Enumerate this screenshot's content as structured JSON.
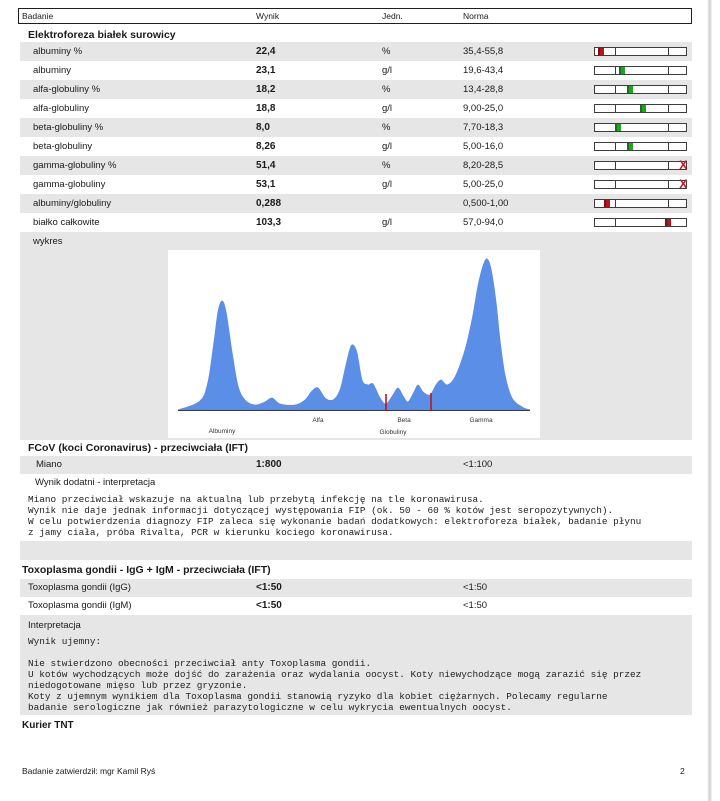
{
  "header": {
    "test": "Badanie",
    "result": "Wynik",
    "unit": "Jedn.",
    "norm": "Norma"
  },
  "electrophoresis": {
    "title": "Elektroforeza białek surowicy",
    "rows": [
      {
        "name": "albuminy %",
        "value": "22,4",
        "unit": "%",
        "norm": "35,4-55,8",
        "level": 0.07,
        "marker_color": "#b3161b"
      },
      {
        "name": "albuminy",
        "value": "23,1",
        "unit": "g/l",
        "norm": "19,6-43,4",
        "level": 0.3,
        "marker_color": "#1fa51f"
      },
      {
        "name": "alfa-globuliny %",
        "value": "18,2",
        "unit": "%",
        "norm": "13,4-28,8",
        "level": 0.39,
        "marker_color": "#1fa51f"
      },
      {
        "name": "alfa-globuliny",
        "value": "18,8",
        "unit": "g/l",
        "norm": "9,00-25,0",
        "level": 0.53,
        "marker_color": "#1fa51f"
      },
      {
        "name": "beta-globuliny %",
        "value": "8,0",
        "unit": "%",
        "norm": "7,70-18,3",
        "level": 0.25,
        "marker_color": "#1fa51f"
      },
      {
        "name": "beta-globuliny",
        "value": "8,26",
        "unit": "g/l",
        "norm": "5,00-16,0",
        "level": 0.38,
        "marker_color": "#1fa51f"
      },
      {
        "name": "gamma-globuliny %",
        "value": "51,4",
        "unit": "%",
        "norm": "8,20-28,5",
        "level": 0.97,
        "marker_color": "#c8141b",
        "marker_symbol": "X"
      },
      {
        "name": "gamma-globuliny",
        "value": "53,1",
        "unit": "g/l",
        "norm": "5,00-25,0",
        "level": 0.97,
        "marker_color": "#c8141b",
        "marker_symbol": "X"
      },
      {
        "name": "albuminy/globuliny",
        "value": "0,288",
        "norm": "0,500-1,00",
        "level": 0.13,
        "marker_color": "#b3161b"
      },
      {
        "name": "białko całkowite",
        "value": "103,3",
        "unit": "g/l",
        "norm": "57,0-94,0",
        "level": 0.8,
        "marker_color": "#b3161b"
      }
    ],
    "chart_caption": "wykres",
    "chart_labels": {
      "albuminy": "Albuminy",
      "alfa": "Alfa",
      "beta": "Beta",
      "globuliny": "Globuliny",
      "gamma": "Gamma"
    },
    "curve_color": "#5b8ee6",
    "divider_color": "#c0141a"
  },
  "fcov": {
    "title": "FCoV (koci Coronavirus) - przeciwciała (IFT)",
    "row": {
      "name": "Miano",
      "value": "1:800",
      "norm": "<1:100"
    },
    "interp_title": "Wynik dodatni - interpretacja",
    "interp_lines": [
      "Miano przeciwciał wskazuje na aktualną lub przebytą infekcję na tle koronawirusa.",
      "Wynik nie daje jednak informacji dotyczącej występowania FIP (ok. 50 - 60 % kotów jest seropozytywnych).",
      "W celu potwierdzenia diagnozy FIP zaleca się wykonanie badań dodatkowych: elektroforeza białek, badanie płynu",
      "z jamy ciała, próba Rivalta, PCR w kierunku kociego koronawirusa."
    ]
  },
  "toxo": {
    "title": "Toxoplasma gondii - IgG + IgM - przeciwciała (IFT)",
    "rows": [
      {
        "name": "Toxoplasma gondii (IgG)",
        "value": "<1:50",
        "norm": "<1:50"
      },
      {
        "name": "Toxoplasma gondii (IgM)",
        "value": "<1:50",
        "norm": "<1:50"
      }
    ],
    "interp_title": "Interpretacja",
    "result_line": "Wynik ujemny:",
    "interp_lines": [
      "Nie stwierdzono obecności przeciwciał anty Toxoplasma gondii.",
      "U kotów wychodzących może dojść do zarażenia oraz wydalania oocyst. Koty niewychodzące mogą zarazić się przez",
      "niedogotowane mięso lub przez gryzonie.",
      "Koty z ujemnym wynikiem dla Toxoplasma gondii stanowią ryzyko dla kobiet ciężarnych. Polecamy regularne",
      "badanie serologiczne jak również parazytologiczne w celu wykrycia ewentualnych oocyst."
    ]
  },
  "courier": "Kurier TNT",
  "footer": {
    "approved": "Badanie zatwierdził: mgr Kamil Ryś",
    "page": "2"
  }
}
